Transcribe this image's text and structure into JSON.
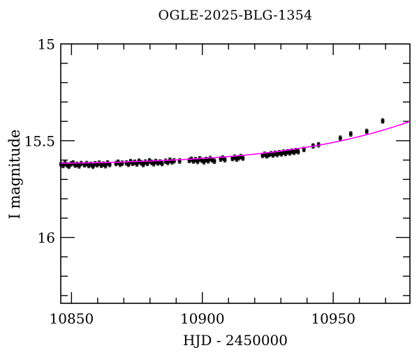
{
  "title": "OGLE-2025-BLG-1354",
  "axes": {
    "x_label_ticks": [
      10850,
      10900,
      10950
    ],
    "x_tick_labels": [
      "10850",
      "10900",
      "10950"
    ],
    "x_minor_ticks": [
      10860,
      10870,
      10880,
      10890,
      10910,
      10920,
      10930,
      10940,
      10960,
      10970
    ],
    "y_label_ticks": [
      15,
      15.5,
      16
    ],
    "y_tick_labels": [
      "15",
      "15.5",
      "16"
    ],
    "y_major_ticks": [
      15.5,
      16
    ],
    "y_minor_ticks": [
      15.1,
      15.2,
      15.3,
      15.4,
      15.6,
      15.7,
      15.8,
      15.9,
      16.1,
      16.2,
      16.3
    ]
  },
  "chart_data": {
    "type": "scatter",
    "title": "OGLE-2025-BLG-1354",
    "xlabel": "HJD - 2450000",
    "ylabel": "I magnitude",
    "xlim": [
      10845.9,
      10979.3
    ],
    "ylim": [
      15.0,
      16.34
    ],
    "y_axis_inverted_magnitude": true,
    "grid": false,
    "legend": "none",
    "series": [
      {
        "name": "OGLE I-band photometry",
        "type": "scatter",
        "marker": "filled-square",
        "color": "#000000",
        "mag_err": 0.012,
        "points": [
          [
            10846.0,
            15.622
          ],
          [
            10846.8,
            15.628
          ],
          [
            10847.5,
            15.617
          ],
          [
            10848.3,
            15.625
          ],
          [
            10849.0,
            15.632
          ],
          [
            10849.8,
            15.62
          ],
          [
            10850.6,
            15.615
          ],
          [
            10851.4,
            15.626
          ],
          [
            10852.1,
            15.622
          ],
          [
            10852.9,
            15.63
          ],
          [
            10853.7,
            15.618
          ],
          [
            10855.0,
            15.625
          ],
          [
            10855.8,
            15.618
          ],
          [
            10856.6,
            15.628
          ],
          [
            10857.4,
            15.622
          ],
          [
            10858.2,
            15.632
          ],
          [
            10859.0,
            15.619
          ],
          [
            10859.8,
            15.624
          ],
          [
            10860.6,
            15.616
          ],
          [
            10861.4,
            15.627
          ],
          [
            10862.2,
            15.621
          ],
          [
            10863.0,
            15.629
          ],
          [
            10863.8,
            15.615
          ],
          [
            10864.6,
            15.623
          ],
          [
            10867.0,
            15.618
          ],
          [
            10867.8,
            15.611
          ],
          [
            10868.6,
            15.622
          ],
          [
            10869.4,
            15.616
          ],
          [
            10871.0,
            15.615
          ],
          [
            10871.8,
            15.622
          ],
          [
            10872.6,
            15.608
          ],
          [
            10873.4,
            15.617
          ],
          [
            10874.2,
            15.611
          ],
          [
            10875.0,
            15.62
          ],
          [
            10875.8,
            15.606
          ],
          [
            10876.6,
            15.614
          ],
          [
            10877.4,
            15.623
          ],
          [
            10878.2,
            15.61
          ],
          [
            10879.0,
            15.617
          ],
          [
            10879.8,
            15.604
          ],
          [
            10880.6,
            15.612
          ],
          [
            10881.4,
            15.619
          ],
          [
            10882.2,
            15.607
          ],
          [
            10883.0,
            15.615
          ],
          [
            10883.8,
            15.61
          ],
          [
            10884.6,
            15.618
          ],
          [
            10886.0,
            15.606
          ],
          [
            10886.8,
            15.612
          ],
          [
            10887.6,
            15.601
          ],
          [
            10888.4,
            15.609
          ],
          [
            10889.2,
            15.604
          ],
          [
            10891.3,
            15.605
          ],
          [
            10895.0,
            15.602
          ],
          [
            10895.8,
            15.596
          ],
          [
            10896.6,
            15.605
          ],
          [
            10897.4,
            15.598
          ],
          [
            10898.2,
            15.607
          ],
          [
            10899.0,
            15.594
          ],
          [
            10899.8,
            15.601
          ],
          [
            10900.6,
            15.609
          ],
          [
            10901.4,
            15.597
          ],
          [
            10902.2,
            15.604
          ],
          [
            10903.0,
            15.592
          ],
          [
            10903.8,
            15.6
          ],
          [
            10904.6,
            15.606
          ],
          [
            10907.0,
            15.595
          ],
          [
            10907.8,
            15.589
          ],
          [
            10908.6,
            15.598
          ],
          [
            10911.5,
            15.592
          ],
          [
            10912.3,
            15.585
          ],
          [
            10913.1,
            15.595
          ],
          [
            10913.9,
            15.588
          ],
          [
            10914.7,
            15.582
          ],
          [
            10915.5,
            15.59
          ],
          [
            10923.0,
            15.576
          ],
          [
            10923.8,
            15.57
          ],
          [
            10924.6,
            15.578
          ],
          [
            10925.4,
            15.572
          ],
          [
            10926.2,
            15.567
          ],
          [
            10927.0,
            15.574
          ],
          [
            10927.8,
            15.565
          ],
          [
            10928.6,
            15.571
          ],
          [
            10929.4,
            15.562
          ],
          [
            10930.2,
            15.568
          ],
          [
            10931.0,
            15.559
          ],
          [
            10931.8,
            15.566
          ],
          [
            10932.6,
            15.557
          ],
          [
            10933.4,
            15.563
          ],
          [
            10934.2,
            15.554
          ],
          [
            10935.0,
            15.56
          ],
          [
            10935.8,
            15.551
          ],
          [
            10936.6,
            15.557
          ],
          [
            10938.8,
            15.545
          ],
          [
            10942.3,
            15.527
          ],
          [
            10944.4,
            15.521
          ],
          [
            10952.7,
            15.487
          ],
          [
            10956.7,
            15.465
          ],
          [
            10962.8,
            15.452
          ],
          [
            10968.9,
            15.398
          ]
        ]
      },
      {
        "name": "microlensing model fit",
        "type": "line",
        "color": "#ff00ff",
        "points": [
          [
            10845.9,
            15.616
          ],
          [
            10850,
            15.6155
          ],
          [
            10855,
            15.6145
          ],
          [
            10860,
            15.6135
          ],
          [
            10865,
            15.612
          ],
          [
            10870,
            15.61
          ],
          [
            10875,
            15.6075
          ],
          [
            10880,
            15.605
          ],
          [
            10885,
            15.602
          ],
          [
            10890,
            15.599
          ],
          [
            10895,
            15.5955
          ],
          [
            10900,
            15.5915
          ],
          [
            10905,
            15.587
          ],
          [
            10910,
            15.582
          ],
          [
            10915,
            15.576
          ],
          [
            10920,
            15.5695
          ],
          [
            10925,
            15.562
          ],
          [
            10930,
            15.5535
          ],
          [
            10935,
            15.544
          ],
          [
            10940,
            15.5335
          ],
          [
            10945,
            15.522
          ],
          [
            10950,
            15.509
          ],
          [
            10955,
            15.4945
          ],
          [
            10960,
            15.4785
          ],
          [
            10965,
            15.461
          ],
          [
            10970,
            15.4415
          ],
          [
            10975,
            15.4205
          ],
          [
            10979.3,
            15.401
          ]
        ]
      }
    ]
  },
  "colors": {
    "background": "#ffffff",
    "frame": "#000000",
    "text": "#000000",
    "data_points": "#000000",
    "model_curve": "#ff00ff"
  }
}
